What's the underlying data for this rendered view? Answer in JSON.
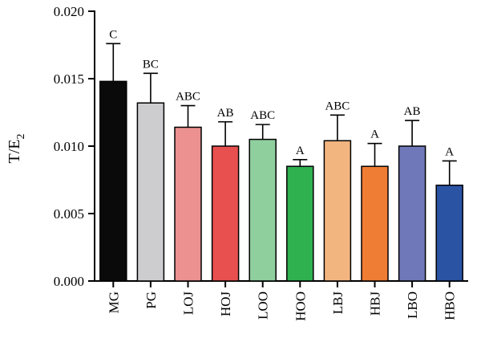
{
  "chart_data": {
    "type": "bar",
    "ylabel": "T/E",
    "ylabel_subscript": "2",
    "ylim": [
      0,
      0.02
    ],
    "yticks": [
      0.0,
      0.005,
      0.01,
      0.015,
      0.02
    ],
    "ytick_labels": [
      "0.000",
      "0.005",
      "0.010",
      "0.015",
      "0.020"
    ],
    "categories": [
      "MG",
      "PG",
      "LOJ",
      "HOJ",
      "LOO",
      "HOO",
      "LBJ",
      "HBJ",
      "LBO",
      "HBO"
    ],
    "values": [
      0.0148,
      0.0132,
      0.0114,
      0.01,
      0.0105,
      0.0085,
      0.0104,
      0.0085,
      0.01,
      0.0071
    ],
    "errors": [
      0.0028,
      0.0022,
      0.0016,
      0.0018,
      0.0011,
      0.0005,
      0.0019,
      0.0017,
      0.0019,
      0.0018
    ],
    "significance": [
      "C",
      "BC",
      "ABC",
      "AB",
      "ABC",
      "A",
      "ABC",
      "A",
      "AB",
      "A"
    ],
    "colors": [
      "#0a0a0a",
      "#cdcdcf",
      "#ec9090",
      "#e8504f",
      "#8fcf9e",
      "#2fb150",
      "#f3b580",
      "#ef7d33",
      "#6f79b9",
      "#2b53a4"
    ]
  }
}
